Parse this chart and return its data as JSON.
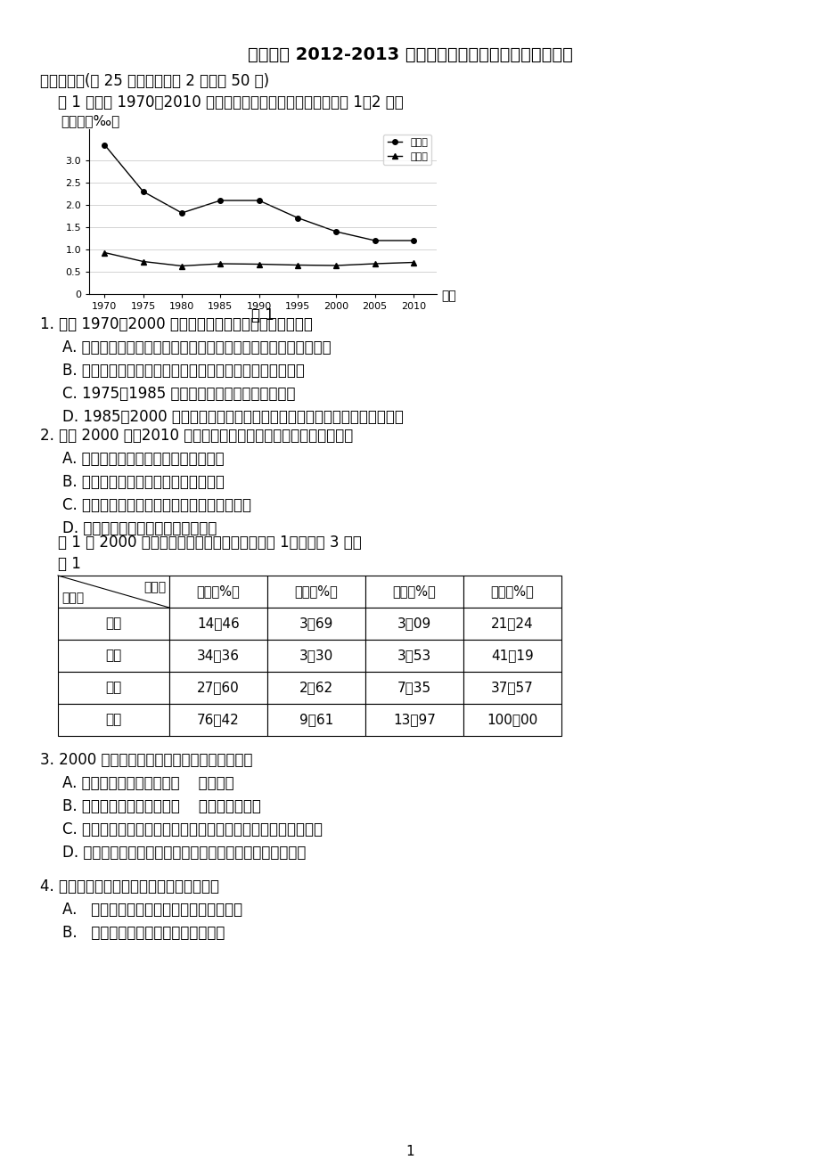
{
  "title": "双语中学 2012-2013 学年高一下学期第二次月考地理试题",
  "section1": "一、单选题(共 25 道小题，每题 2 分，共 50 分)",
  "chart_intro": "图 1 为我国 1970－2010 年人口出生率和死亡率统计图。回答 1、2 题。",
  "chart_ylabel": "百分比（‰）",
  "chart_xlabel": "年份",
  "chart_caption": "图 1",
  "chart_years": [
    1970,
    1975,
    1980,
    1985,
    1990,
    1995,
    2000,
    2005,
    2010
  ],
  "birth_rate": [
    3.35,
    2.3,
    1.82,
    2.1,
    2.1,
    1.71,
    1.4,
    1.2,
    1.2
  ],
  "death_rate": [
    0.93,
    0.73,
    0.63,
    0.68,
    0.67,
    0.65,
    0.64,
    0.68,
    0.71
  ],
  "legend_birth": "出生率",
  "legend_death": "死亡率",
  "yticks": [
    0,
    0.5,
    1.0,
    1.5,
    2.0,
    2.5,
    3.0
  ],
  "ytick_labels": [
    "0",
    "0.5↵",
    "1.0↵",
    "1.5↵",
    "2.0↵",
    "2.5↵",
    "3.0↵"
  ],
  "q1": "1. 关于 1970－2000 年间人口变化的相关叙述，正确的是",
  "q1a": "A. 出生率基本保持不变，死亡率不断下降，自然增长率也不断下降",
  "q1b": "B. 人口增长模式完成了高高低特征向三低特征的过渡和转变",
  "q1c": "C. 1975－1985 年期间，我国人口数量先增后降",
  "q1d": "D. 1985－2000 年人口变化显示了我国在控制人口增长方面取得了较大成就",
  "q2": "2. 根据 2000 年－2010 年间人口变化特点，判断下列叙述正确的是",
  "q2a": "A. 人口数量的增长与环境、资源相适应",
  "q2b": "B. 面临着人口增长速度过快带来的问题",
  "q2c": "C. 应建立科学合理的养老制度和社会福利制度",
  "q2d": "D. 人口变化特点与人口迁移密切相关",
  "table_intro": "表 1 为 2000 年中国人口迁移流向统计表。读表 1，回答第 3 题。",
  "table_title": "表 1",
  "table_col_headers": [
    "东部（%）",
    "中部（%）",
    "西部（%）",
    "合计（%）"
  ],
  "table_diag_top": "迁入地",
  "table_diag_bot": "迁出地",
  "table_rows": [
    [
      "东部",
      "14．46",
      "3．69",
      "3．09",
      "21．24"
    ],
    [
      "中部",
      "34．36",
      "3．30",
      "3．53",
      "41．19"
    ],
    [
      "西部",
      "27．60",
      "2．62",
      "7．35",
      "37．57"
    ],
    [
      "合计",
      "76．42",
      "9．61",
      "13．97",
      "100．00"
    ]
  ],
  "q3": "3. 2000 年中国人口迁移流向及主要影响因素是",
  "q3a": "A. 东部是人口的最大迁出区    人多地少",
  "q3b": "B. 中部是人口的最大迁入区    矿产资源的开发",
  "q3c": "C. 人口迁移量最大的方向是由中部迁往东部经济发展水平的差异",
  "q3d": "D. 人口迁移量最大的方向是由西部迁往东部自然条件的差异",
  "q4": "4. 人口迁移与其主要影响因素组合正确的是",
  "q4a": "A.   中国农村人口迁往城市－社会文化因素",
  "q4b": "B.   图瓦卢举国搬迁新西兰－生态因素",
  "page_num": "1",
  "bg_color": "#ffffff",
  "text_color": "#000000"
}
